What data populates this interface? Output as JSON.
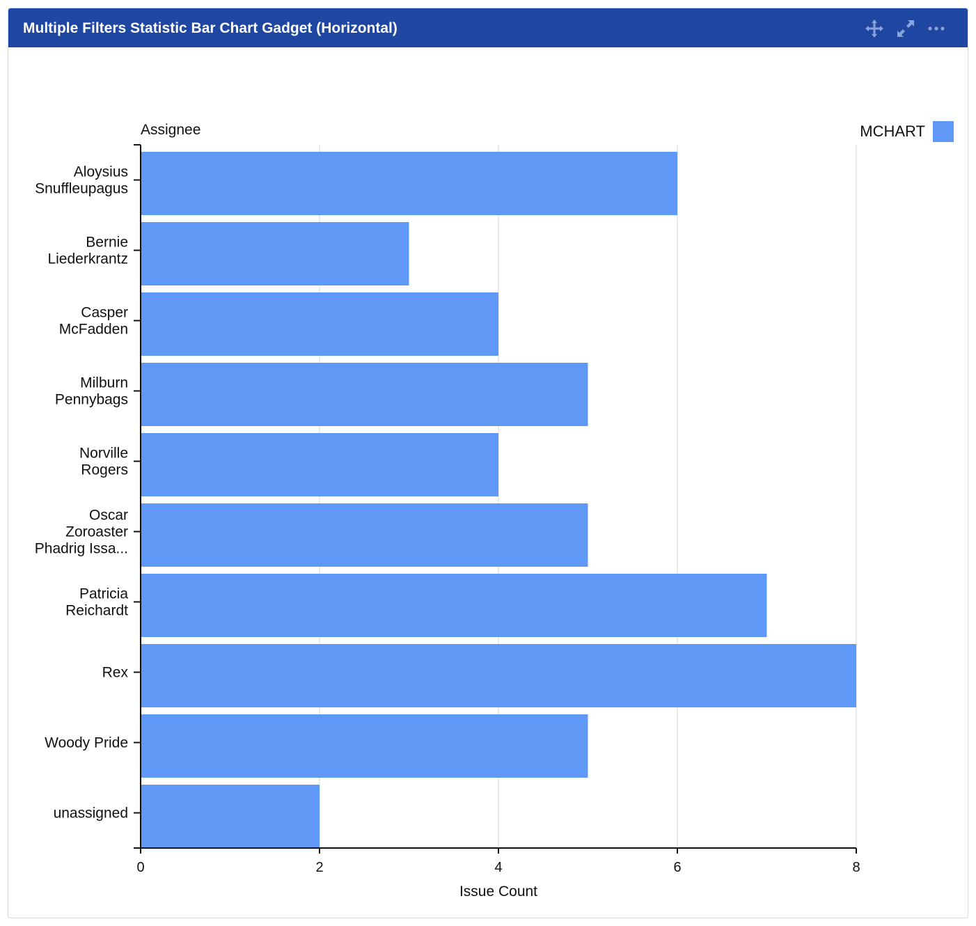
{
  "gadget": {
    "title": "Multiple Filters Statistic Bar Chart Gadget (Horizontal)",
    "icons": [
      "move-icon",
      "expand-icon",
      "more-options-icon"
    ]
  },
  "chart_data": {
    "type": "bar",
    "orientation": "horizontal",
    "ylabel": "Assignee",
    "xlabel": "Issue Count",
    "xlim": [
      0,
      8
    ],
    "xticks": [
      0,
      2,
      4,
      6,
      8
    ],
    "grid": true,
    "legend_position": "top-right",
    "categories": [
      [
        "Aloysius",
        "Snuffleupagus"
      ],
      [
        "Bernie",
        "Liederkrantz"
      ],
      [
        "Casper",
        "McFadden"
      ],
      [
        "Milburn",
        "Pennybags"
      ],
      [
        "Norville",
        "Rogers"
      ],
      [
        "Oscar",
        "Zoroaster",
        "Phadrig Issa..."
      ],
      [
        "Patricia",
        "Reichardt"
      ],
      [
        "Rex"
      ],
      [
        "Woody Pride"
      ],
      [
        "unassigned"
      ]
    ],
    "series": [
      {
        "name": "MCHART",
        "color": "#6098f5",
        "values": [
          6,
          3,
          4,
          5,
          4,
          5,
          7,
          8,
          5,
          2
        ]
      }
    ]
  }
}
